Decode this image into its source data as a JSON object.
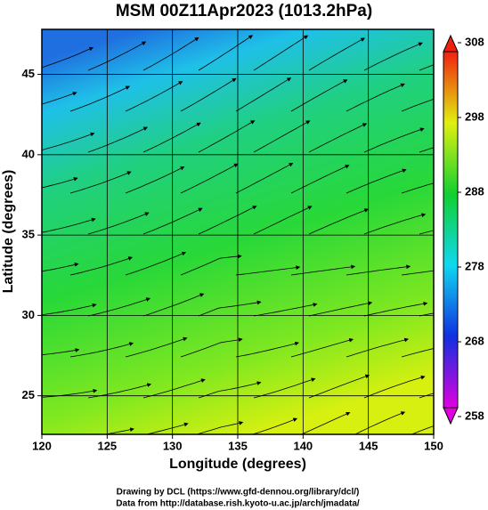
{
  "map": {
    "title": "MSM 00Z11Apr2023 (1013.2hPa)",
    "xlabel": "Longitude (degrees)",
    "ylabel": "Latitude  (degrees)",
    "xlim": [
      120,
      150
    ],
    "xticks": [
      120,
      125,
      130,
      135,
      140,
      145,
      150
    ],
    "ylim": [
      22.6,
      47.8
    ],
    "yticks": [
      25,
      30,
      35,
      40,
      45
    ],
    "grid": true,
    "colorbar": {
      "lim": [
        258,
        308
      ],
      "ticks": [
        258,
        268,
        278,
        288,
        298,
        308
      ],
      "colors": [
        "#e000e0",
        "#1030e0",
        "#10d8f0",
        "#10d030",
        "#e0f010",
        "#f02010"
      ]
    },
    "credits": [
      "Drawing by DCL (https://www.gfd-dennou.org/library/dcl/)",
      "Data from http://database.rish.kyoto-u.ac.jp/arch/jmadata/"
    ]
  }
}
